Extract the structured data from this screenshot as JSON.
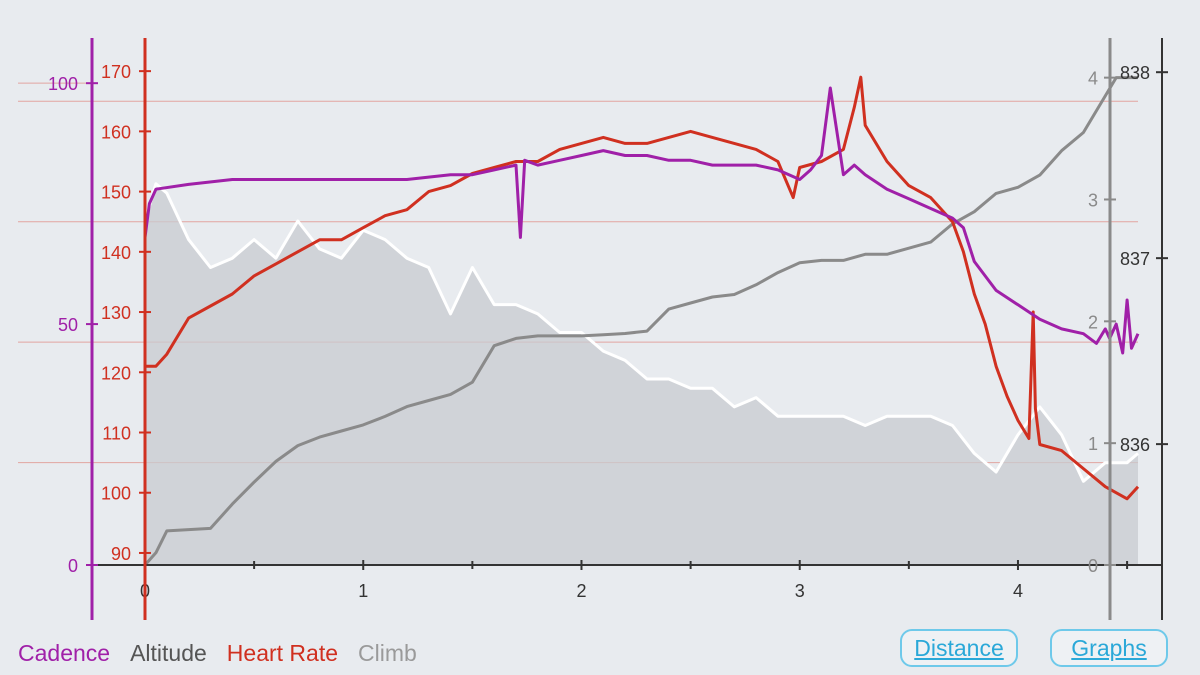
{
  "chart_data": {
    "type": "line",
    "x_axis": {
      "label": "Distance",
      "range": [
        0,
        4.55
      ],
      "ticks": [
        "0",
        "1",
        "2",
        "3",
        "4"
      ]
    },
    "axes": {
      "cadence": {
        "range": [
          0,
          110
        ],
        "ticks": [
          "0",
          "50",
          "100"
        ],
        "color": "#a020a8"
      },
      "heart_rate": {
        "range": [
          88,
          176
        ],
        "ticks": [
          "90",
          "100",
          "110",
          "120",
          "130",
          "140",
          "150",
          "160",
          "170"
        ],
        "color": "#d03020"
      },
      "climb": {
        "range": [
          0,
          4.35
        ],
        "ticks": [
          "0",
          "1",
          "2",
          "3",
          "4"
        ],
        "color": "#8a8a8a"
      },
      "altitude": {
        "range": [
          835.35,
          838.2
        ],
        "ticks": [
          "836",
          "837",
          "838"
        ],
        "color": "#333333"
      }
    },
    "series": [
      {
        "name": "Cadence",
        "color": "#a020a8",
        "x": [
          0,
          0.02,
          0.05,
          0.2,
          0.4,
          0.6,
          0.8,
          1.0,
          1.2,
          1.4,
          1.5,
          1.6,
          1.7,
          1.72,
          1.74,
          1.8,
          1.9,
          2.0,
          2.1,
          2.2,
          2.3,
          2.4,
          2.5,
          2.6,
          2.7,
          2.8,
          2.9,
          3.0,
          3.05,
          3.1,
          3.14,
          3.2,
          3.25,
          3.3,
          3.4,
          3.5,
          3.6,
          3.7,
          3.75,
          3.8,
          3.9,
          4.0,
          4.1,
          4.2,
          4.3,
          4.36,
          4.4,
          4.42,
          4.45,
          4.48,
          4.5,
          4.52,
          4.55
        ],
        "values": [
          68,
          75,
          78,
          79,
          80,
          80,
          80,
          80,
          80,
          81,
          81,
          82,
          83,
          68,
          84,
          83,
          84,
          85,
          86,
          85,
          85,
          84,
          84,
          83,
          83,
          83,
          82,
          80,
          82,
          85,
          99,
          81,
          83,
          81,
          78,
          76,
          74,
          72,
          70,
          63,
          57,
          54,
          51,
          49,
          48,
          46,
          49,
          47,
          50,
          44,
          55,
          45,
          48
        ]
      },
      {
        "name": "Altitude",
        "color": "#ffffff",
        "x": [
          0,
          0.05,
          0.1,
          0.2,
          0.3,
          0.4,
          0.5,
          0.6,
          0.7,
          0.8,
          0.9,
          1.0,
          1.1,
          1.2,
          1.3,
          1.4,
          1.5,
          1.6,
          1.7,
          1.8,
          1.9,
          2.0,
          2.1,
          2.2,
          2.3,
          2.4,
          2.5,
          2.6,
          2.7,
          2.8,
          2.9,
          3.0,
          3.1,
          3.2,
          3.3,
          3.4,
          3.5,
          3.6,
          3.7,
          3.8,
          3.9,
          4.0,
          4.1,
          4.2,
          4.3,
          4.4,
          4.5,
          4.55
        ],
        "values": [
          837.2,
          837.4,
          837.35,
          837.1,
          836.95,
          837.0,
          837.1,
          837.0,
          837.2,
          837.05,
          837.0,
          837.15,
          837.1,
          837.0,
          836.95,
          836.7,
          836.95,
          836.75,
          836.75,
          836.7,
          836.6,
          836.6,
          836.5,
          836.45,
          836.35,
          836.35,
          836.3,
          836.3,
          836.2,
          836.25,
          836.15,
          836.15,
          836.15,
          836.15,
          836.1,
          836.15,
          836.15,
          836.15,
          836.1,
          835.95,
          835.85,
          836.05,
          836.2,
          836.05,
          835.8,
          835.9,
          835.9,
          835.95
        ]
      },
      {
        "name": "Heart Rate",
        "color": "#d03020",
        "x": [
          0,
          0.05,
          0.1,
          0.2,
          0.3,
          0.4,
          0.5,
          0.6,
          0.7,
          0.8,
          0.9,
          1.0,
          1.1,
          1.2,
          1.3,
          1.4,
          1.5,
          1.6,
          1.7,
          1.8,
          1.9,
          2.0,
          2.1,
          2.2,
          2.3,
          2.4,
          2.5,
          2.6,
          2.7,
          2.8,
          2.9,
          2.97,
          3.0,
          3.1,
          3.2,
          3.25,
          3.28,
          3.3,
          3.4,
          3.5,
          3.6,
          3.7,
          3.75,
          3.8,
          3.85,
          3.9,
          3.95,
          4.0,
          4.05,
          4.07,
          4.08,
          4.1,
          4.2,
          4.3,
          4.4,
          4.5,
          4.55
        ],
        "values": [
          121,
          121,
          123,
          129,
          131,
          133,
          136,
          138,
          140,
          142,
          142,
          144,
          146,
          147,
          150,
          151,
          153,
          154,
          155,
          155,
          157,
          158,
          159,
          158,
          158,
          159,
          160,
          159,
          158,
          157,
          155,
          149,
          154,
          155,
          157,
          164,
          169,
          161,
          155,
          151,
          149,
          145,
          140,
          133,
          128,
          121,
          116,
          112,
          109,
          130,
          114,
          108,
          107,
          104,
          101,
          99,
          101
        ]
      },
      {
        "name": "Climb",
        "color": "#8a8a8a",
        "x": [
          0,
          0.05,
          0.1,
          0.3,
          0.4,
          0.5,
          0.6,
          0.7,
          0.8,
          0.9,
          1.0,
          1.1,
          1.2,
          1.3,
          1.4,
          1.5,
          1.6,
          1.7,
          1.8,
          1.9,
          2.0,
          2.1,
          2.2,
          2.3,
          2.4,
          2.5,
          2.6,
          2.7,
          2.8,
          2.9,
          3.0,
          3.1,
          3.2,
          3.3,
          3.4,
          3.5,
          3.6,
          3.7,
          3.8,
          3.9,
          4.0,
          4.1,
          4.2,
          4.3,
          4.4,
          4.45,
          4.55
        ],
        "values": [
          0,
          0.1,
          0.28,
          0.3,
          0.5,
          0.68,
          0.85,
          0.98,
          1.05,
          1.1,
          1.15,
          1.22,
          1.3,
          1.35,
          1.4,
          1.5,
          1.8,
          1.86,
          1.88,
          1.88,
          1.88,
          1.89,
          1.9,
          1.92,
          2.1,
          2.15,
          2.2,
          2.22,
          2.3,
          2.4,
          2.48,
          2.5,
          2.5,
          2.55,
          2.55,
          2.6,
          2.65,
          2.8,
          2.9,
          3.05,
          3.1,
          3.2,
          3.4,
          3.55,
          3.85,
          4.0,
          4.0
        ]
      }
    ]
  },
  "legend": {
    "cadence": "Cadence",
    "altitude": "Altitude",
    "heart_rate": "Heart Rate",
    "climb": "Climb"
  },
  "buttons": {
    "distance": "Distance",
    "graphs": "Graphs"
  }
}
